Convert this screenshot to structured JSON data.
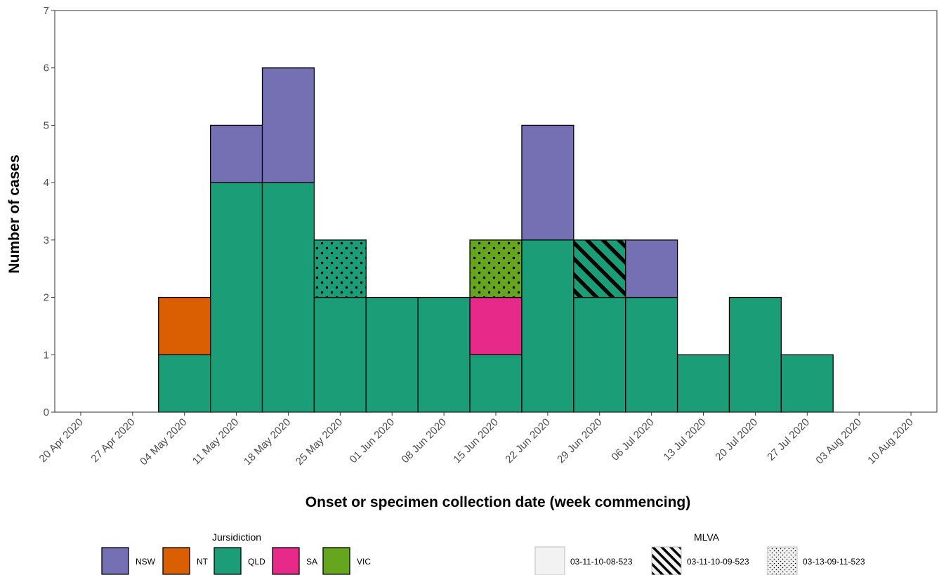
{
  "chart_data": {
    "type": "bar",
    "stacked": true,
    "xlabel": "Onset or specimen collection date (week commencing)",
    "ylabel": "Number of cases",
    "ylim": [
      0,
      7
    ],
    "yticks": [
      0,
      1,
      2,
      3,
      4,
      5,
      6,
      7
    ],
    "grid": false,
    "legend_position": "bottom",
    "categories": [
      "20 Apr 2020",
      "27 Apr 2020",
      "04 May 2020",
      "11 May 2020",
      "18 May 2020",
      "25 May 2020",
      "01 Jun 2020",
      "08 Jun 2020",
      "15 Jun 2020",
      "22 Jun 2020",
      "29 Jun 2020",
      "06 Jul 2020",
      "13 Jul 2020",
      "20 Jul 2020",
      "27 Jul 2020",
      "03 Aug 2020",
      "10 Aug 2020"
    ],
    "jurisdiction_legend": {
      "title": "Jursidiction",
      "items": [
        {
          "name": "NSW",
          "color": "#7570b3"
        },
        {
          "name": "NT",
          "color": "#d95f02"
        },
        {
          "name": "QLD",
          "color": "#1b9e77"
        },
        {
          "name": "SA",
          "color": "#e7298a"
        },
        {
          "name": "VIC",
          "color": "#66a61e"
        }
      ]
    },
    "mlva_legend": {
      "title": "MLVA",
      "items": [
        {
          "name": "03-11-10-08-523",
          "pattern": "none"
        },
        {
          "name": "03-11-10-09-523",
          "pattern": "stripe"
        },
        {
          "name": "03-13-09-11-523",
          "pattern": "dots"
        }
      ]
    },
    "segments": [
      {
        "week": "04 May 2020",
        "jurisdiction": "QLD",
        "mlva": "03-11-10-08-523",
        "count": 1
      },
      {
        "week": "04 May 2020",
        "jurisdiction": "NT",
        "mlva": "03-11-10-08-523",
        "count": 1
      },
      {
        "week": "11 May 2020",
        "jurisdiction": "QLD",
        "mlva": "03-11-10-08-523",
        "count": 4
      },
      {
        "week": "11 May 2020",
        "jurisdiction": "NSW",
        "mlva": "03-11-10-08-523",
        "count": 1
      },
      {
        "week": "18 May 2020",
        "jurisdiction": "QLD",
        "mlva": "03-11-10-08-523",
        "count": 4
      },
      {
        "week": "18 May 2020",
        "jurisdiction": "NSW",
        "mlva": "03-11-10-08-523",
        "count": 2
      },
      {
        "week": "25 May 2020",
        "jurisdiction": "QLD",
        "mlva": "03-11-10-08-523",
        "count": 2
      },
      {
        "week": "25 May 2020",
        "jurisdiction": "QLD",
        "mlva": "03-13-09-11-523",
        "count": 1
      },
      {
        "week": "01 Jun 2020",
        "jurisdiction": "QLD",
        "mlva": "03-11-10-08-523",
        "count": 2
      },
      {
        "week": "08 Jun 2020",
        "jurisdiction": "QLD",
        "mlva": "03-11-10-08-523",
        "count": 2
      },
      {
        "week": "15 Jun 2020",
        "jurisdiction": "QLD",
        "mlva": "03-11-10-08-523",
        "count": 1
      },
      {
        "week": "15 Jun 2020",
        "jurisdiction": "SA",
        "mlva": "03-11-10-08-523",
        "count": 1
      },
      {
        "week": "15 Jun 2020",
        "jurisdiction": "VIC",
        "mlva": "03-13-09-11-523",
        "count": 1
      },
      {
        "week": "22 Jun 2020",
        "jurisdiction": "QLD",
        "mlva": "03-11-10-08-523",
        "count": 3
      },
      {
        "week": "22 Jun 2020",
        "jurisdiction": "NSW",
        "mlva": "03-11-10-08-523",
        "count": 2
      },
      {
        "week": "29 Jun 2020",
        "jurisdiction": "QLD",
        "mlva": "03-11-10-08-523",
        "count": 2
      },
      {
        "week": "29 Jun 2020",
        "jurisdiction": "QLD",
        "mlva": "03-11-10-09-523",
        "count": 1
      },
      {
        "week": "06 Jul 2020",
        "jurisdiction": "QLD",
        "mlva": "03-11-10-08-523",
        "count": 2
      },
      {
        "week": "06 Jul 2020",
        "jurisdiction": "NSW",
        "mlva": "03-11-10-08-523",
        "count": 1
      },
      {
        "week": "13 Jul 2020",
        "jurisdiction": "QLD",
        "mlva": "03-11-10-08-523",
        "count": 1
      },
      {
        "week": "20 Jul 2020",
        "jurisdiction": "QLD",
        "mlva": "03-11-10-08-523",
        "count": 2
      },
      {
        "week": "27 Jul 2020",
        "jurisdiction": "QLD",
        "mlva": "03-11-10-08-523",
        "count": 1
      }
    ]
  }
}
